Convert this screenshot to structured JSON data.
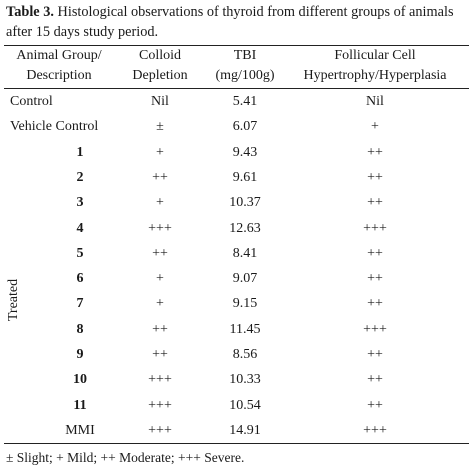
{
  "caption": {
    "label": "Table 3.",
    "text": "Histological observations of thyroid from different groups of animals after 15 days study period."
  },
  "headers": {
    "group_line1": "Animal Group/",
    "group_line2": "Description",
    "colloid_line1": "Colloid",
    "colloid_line2": "Depletion",
    "tbi_line1": "TBI",
    "tbi_line2": "(mg/100g)",
    "hyp_line1": "Follicular Cell",
    "hyp_line2": "Hypertrophy/Hyperplasia"
  },
  "rows": [
    {
      "group": "Control",
      "colloid": "Nil",
      "tbi": "5.41",
      "hyp": "Nil"
    },
    {
      "group": "Vehicle Control",
      "colloid": "±",
      "tbi": "6.07",
      "hyp": "+"
    },
    {
      "group": "1",
      "colloid": "+",
      "tbi": "9.43",
      "hyp": "++"
    },
    {
      "group": "2",
      "colloid": "++",
      "tbi": "9.61",
      "hyp": "++"
    },
    {
      "group": "3",
      "colloid": "+",
      "tbi": "10.37",
      "hyp": "++"
    },
    {
      "group": "4",
      "colloid": "+++",
      "tbi": "12.63",
      "hyp": "+++"
    },
    {
      "group": "5",
      "colloid": "++",
      "tbi": "8.41",
      "hyp": "++"
    },
    {
      "group": "6",
      "colloid": "+",
      "tbi": "9.07",
      "hyp": "++"
    },
    {
      "group": "7",
      "colloid": "+",
      "tbi": "9.15",
      "hyp": "++"
    },
    {
      "group": "8",
      "colloid": "++",
      "tbi": "11.45",
      "hyp": "+++"
    },
    {
      "group": "9",
      "colloid": "++",
      "tbi": "8.56",
      "hyp": "++"
    },
    {
      "group": "10",
      "colloid": "+++",
      "tbi": "10.33",
      "hyp": "++"
    },
    {
      "group": "11",
      "colloid": "+++",
      "tbi": "10.54",
      "hyp": "++"
    },
    {
      "group": "MMI",
      "colloid": "+++",
      "tbi": "14.91",
      "hyp": "+++"
    }
  ],
  "side_label": "Treated",
  "footnote": "± Slight; + Mild; ++ Moderate; +++ Severe."
}
